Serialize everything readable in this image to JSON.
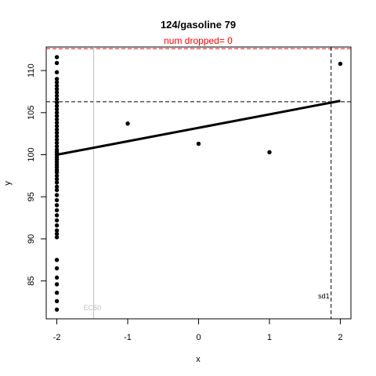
{
  "chart_data": {
    "type": "scatter",
    "title": "124/gasoline 79",
    "subtitle": "num dropped= 0",
    "xlabel": "x",
    "ylabel": "y",
    "xlim": [
      -2.15,
      2.15
    ],
    "ylim": [
      80.5,
      112.8
    ],
    "xticks": [
      -2,
      -1,
      0,
      1,
      2
    ],
    "yticks": [
      85,
      90,
      95,
      100,
      105,
      110
    ],
    "points": [
      [
        -2,
        111.6
      ],
      [
        -2,
        110.9
      ],
      [
        -2,
        109.8
      ],
      [
        -2,
        109.0
      ],
      [
        -2,
        108.6
      ],
      [
        -2,
        108.2
      ],
      [
        -2,
        107.8
      ],
      [
        -2,
        107.4
      ],
      [
        -2,
        107.0
      ],
      [
        -2,
        106.6
      ],
      [
        -2,
        106.2
      ],
      [
        -2,
        105.8
      ],
      [
        -2,
        105.4
      ],
      [
        -2,
        105.0
      ],
      [
        -2,
        104.6
      ],
      [
        -2,
        104.2
      ],
      [
        -2,
        103.8
      ],
      [
        -2,
        103.4
      ],
      [
        -2,
        103.0
      ],
      [
        -2,
        102.6
      ],
      [
        -2,
        102.2
      ],
      [
        -2,
        101.8
      ],
      [
        -2,
        101.4
      ],
      [
        -2,
        101.0
      ],
      [
        -2,
        100.6
      ],
      [
        -2,
        100.3
      ],
      [
        -2,
        100.0
      ],
      [
        -2,
        99.7
      ],
      [
        -2,
        99.4
      ],
      [
        -2,
        99.1
      ],
      [
        -2,
        98.8
      ],
      [
        -2,
        98.5
      ],
      [
        -2,
        98.2
      ],
      [
        -2,
        97.9
      ],
      [
        -2,
        97.5
      ],
      [
        -2,
        97.1
      ],
      [
        -2,
        96.7
      ],
      [
        -2,
        96.2
      ],
      [
        -2,
        95.8
      ],
      [
        -2,
        95.2
      ],
      [
        -2,
        94.6
      ],
      [
        -2,
        94.0
      ],
      [
        -2,
        93.4
      ],
      [
        -2,
        92.8
      ],
      [
        -2,
        92.2
      ],
      [
        -2,
        91.6
      ],
      [
        -2,
        91.0
      ],
      [
        -2,
        90.6
      ],
      [
        -2,
        90.2
      ],
      [
        -2,
        87.5
      ],
      [
        -2,
        86.5
      ],
      [
        -2,
        85.4
      ],
      [
        -2,
        84.6
      ],
      [
        -2,
        83.6
      ],
      [
        -2,
        82.6
      ],
      [
        -2,
        81.6
      ],
      [
        -1,
        103.7
      ],
      [
        0,
        101.3
      ],
      [
        1,
        100.3
      ],
      [
        2,
        110.8
      ]
    ],
    "fit_line": {
      "x": [
        -2,
        2
      ],
      "y": [
        100.0,
        106.4
      ]
    },
    "hlines": [
      {
        "y": 106.3,
        "style": "dashed",
        "color": "#000000"
      },
      {
        "y": 112.6,
        "style": "dashed",
        "color": "#ff0000"
      }
    ],
    "vlines": [
      {
        "x": -1.48,
        "style": "solid",
        "color": "#bebebe",
        "label": "EC50"
      },
      {
        "x": 1.87,
        "style": "dashed",
        "color": "#000000",
        "label": "sd1"
      }
    ],
    "grid": false
  },
  "colors": {
    "points": "#000000",
    "fit": "#000000",
    "subtitle": "#ff0000",
    "ec50": "#bebebe"
  }
}
